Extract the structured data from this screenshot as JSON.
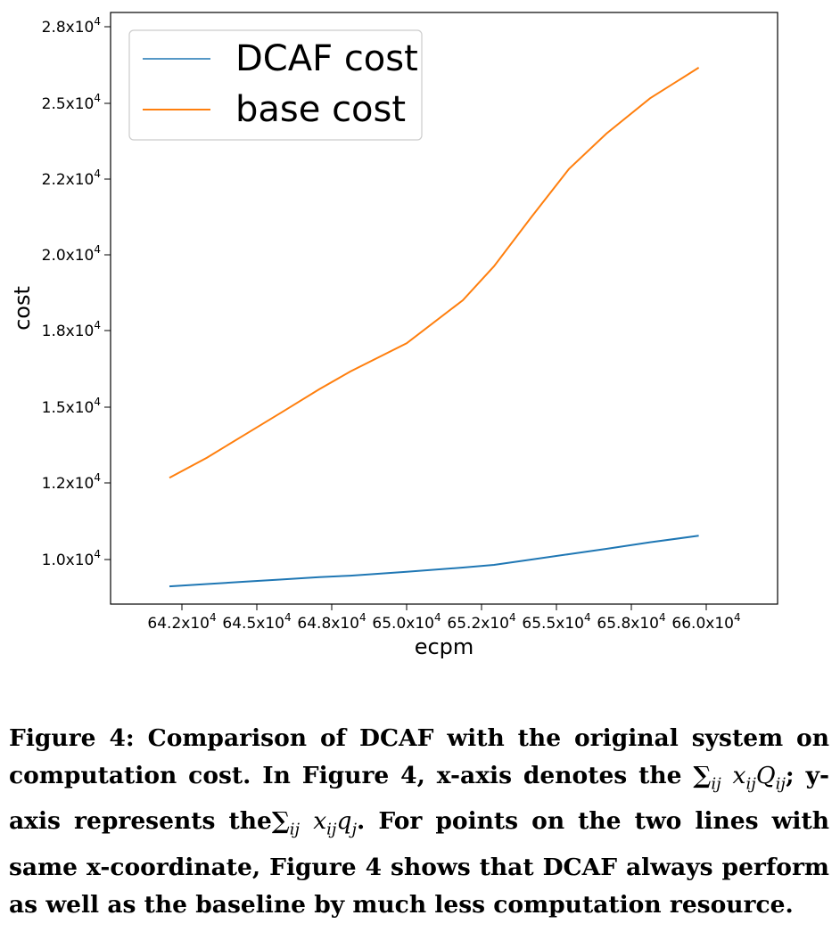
{
  "chart_data": {
    "type": "line",
    "xlabel": "ecpm",
    "ylabel": "cost",
    "x_ticks": [
      {
        "value": 642000,
        "label": "64.2x10^4"
      },
      {
        "value": 645000,
        "label": "64.5x10^4"
      },
      {
        "value": 648000,
        "label": "64.8x10^4"
      },
      {
        "value": 650000,
        "label": "65.0x10^4"
      },
      {
        "value": 652000,
        "label": "65.2x10^4"
      },
      {
        "value": 655000,
        "label": "65.5x10^4"
      },
      {
        "value": 658000,
        "label": "65.8x10^4"
      },
      {
        "value": 660000,
        "label": "66.0x10^4"
      }
    ],
    "y_ticks": [
      {
        "value": 10000,
        "label": "1.0x10^4"
      },
      {
        "value": 12000,
        "label": "1.2x10^4"
      },
      {
        "value": 15000,
        "label": "1.5x10^4"
      },
      {
        "value": 18000,
        "label": "1.8x10^4"
      },
      {
        "value": 20000,
        "label": "2.0x10^4"
      },
      {
        "value": 22000,
        "label": "2.2x10^4"
      },
      {
        "value": 25000,
        "label": "2.5x10^4"
      },
      {
        "value": 28000,
        "label": "2.8x10^4"
      }
    ],
    "x": [
      641500,
      643000,
      644500,
      646000,
      647500,
      648500,
      650000,
      651500,
      652500,
      654000,
      655500,
      657000,
      658500,
      659800
    ],
    "series": [
      {
        "name": "DCAF cost",
        "color": "#1f77b4",
        "values": [
          9300,
          9360,
          9420,
          9480,
          9540,
          9580,
          9680,
          9790,
          9860,
          10000,
          10140,
          10280,
          10450,
          10620
        ]
      },
      {
        "name": "base cost",
        "color": "#ff7f0e",
        "values": [
          12200,
          13000,
          13900,
          14800,
          15700,
          16400,
          17500,
          18800,
          19700,
          21000,
          22400,
          23800,
          25200,
          26400
        ]
      }
    ],
    "legend_placement": "top-left",
    "grid": false
  },
  "caption": {
    "label": "Figure 4:",
    "line1_rest": "Comparison of DCAF with the original system on",
    "line2_a": "computation cost. In Figure 4, x-axis denotes the",
    "line2_math": "∑ij xijQij;",
    "line3_a": "y-axis represents the",
    "line3_math": "∑ij xijqj",
    "line3_b": ". For points on the two lines",
    "line4": "with same x-coordinate, Figure 4 shows that DCAF always",
    "line5": "perform as well as the baseline by much less computation",
    "line6": "resource."
  }
}
